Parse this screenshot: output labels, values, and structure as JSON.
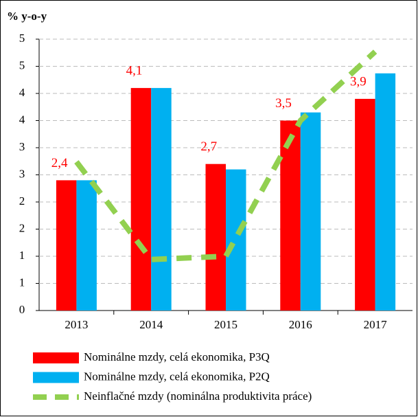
{
  "chart_data": {
    "type": "bar-line",
    "title": "% y-o-y",
    "categories": [
      "2013",
      "2014",
      "2015",
      "2016",
      "2017"
    ],
    "series": [
      {
        "name": "Nominálne mzdy, celá ekonomika, P3Q",
        "color": "#ff0000",
        "kind": "bar",
        "values": [
          2.4,
          4.1,
          2.7,
          3.5,
          3.9
        ],
        "value_labels": [
          "2,4",
          "4,1",
          "2,7",
          "3,5",
          "3,9"
        ]
      },
      {
        "name": "Nominálne mzdy, celá ekonomika, P2Q",
        "color": "#00b0f0",
        "kind": "bar",
        "values": [
          2.4,
          4.1,
          2.6,
          3.65,
          4.37
        ]
      },
      {
        "name": "Neinflačné mzdy (nominálna produktivita práce)",
        "color": "#92d050",
        "kind": "line",
        "values": [
          2.74,
          0.94,
          1.0,
          3.5,
          4.77
        ]
      }
    ],
    "ylim": [
      0,
      5
    ],
    "yticks": [
      0,
      {
        "value": 0.5,
        "label": "1"
      },
      1,
      {
        "value": 1.5,
        "label": "2"
      },
      2,
      {
        "value": 2.5,
        "label": "3"
      },
      3,
      {
        "value": 3.5,
        "label": "4"
      },
      4,
      {
        "value": 4.5,
        "label": "5"
      },
      5
    ],
    "grid": true
  }
}
